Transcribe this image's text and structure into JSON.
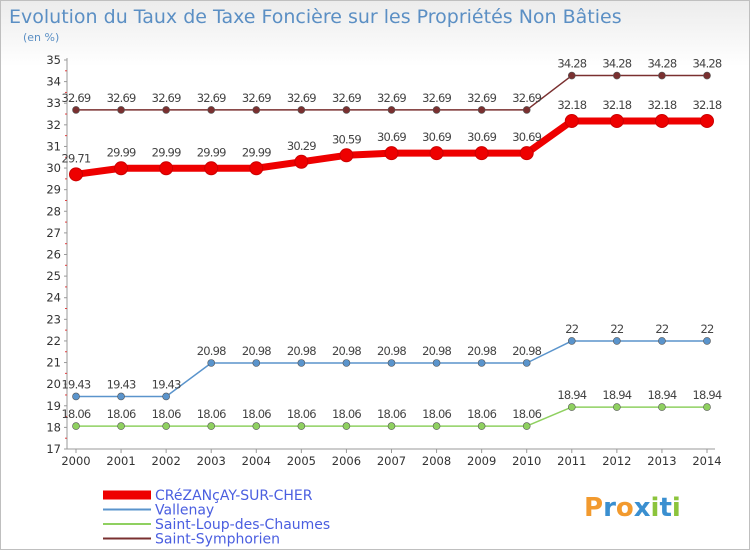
{
  "chart_data": {
    "type": "line",
    "title": "Evolution du Taux de Taxe Foncière sur les Propriétés Non Bâties",
    "ylabel": "(en %)",
    "categories": [
      "2000",
      "2001",
      "2002",
      "2003",
      "2004",
      "2005",
      "2006",
      "2007",
      "2008",
      "2009",
      "2010",
      "2011",
      "2012",
      "2013",
      "2014"
    ],
    "ylim": [
      17,
      35
    ],
    "yticks": [
      "17",
      "18",
      "19",
      "20",
      "21",
      "22",
      "23",
      "24",
      "25",
      "26",
      "27",
      "28",
      "29",
      "30",
      "31",
      "32",
      "33",
      "34",
      "35"
    ],
    "series": [
      {
        "name": "Saint-Symphorien",
        "color": "#7a3030",
        "values": [
          32.69,
          32.69,
          32.69,
          32.69,
          32.69,
          32.69,
          32.69,
          32.69,
          32.69,
          32.69,
          32.69,
          34.28,
          34.28,
          34.28,
          34.28
        ],
        "labels": [
          "32.69",
          "32.69",
          "32.69",
          "32.69",
          "32.69",
          "32.69",
          "32.69",
          "32.69",
          "32.69",
          "32.69",
          "32.69",
          "34.28",
          "34.28",
          "34.28",
          "34.28"
        ]
      },
      {
        "name": "CRéZANçAY-SUR-CHER",
        "color": "#ee0000",
        "values": [
          29.71,
          29.99,
          29.99,
          29.99,
          29.99,
          30.29,
          30.59,
          30.69,
          30.69,
          30.69,
          30.69,
          32.18,
          32.18,
          32.18,
          32.18
        ],
        "labels": [
          "29.71",
          "29.99",
          "29.99",
          "29.99",
          "29.99",
          "30.29",
          "30.59",
          "30.69",
          "30.69",
          "30.69",
          "30.69",
          "32.18",
          "32.18",
          "32.18",
          "32.18"
        ]
      },
      {
        "name": "Vallenay",
        "color": "#5a94cc",
        "values": [
          19.43,
          19.43,
          19.43,
          20.98,
          20.98,
          20.98,
          20.98,
          20.98,
          20.98,
          20.98,
          20.98,
          22,
          22,
          22,
          22
        ],
        "labels": [
          "19.43",
          "19.43",
          "19.43",
          "20.98",
          "20.98",
          "20.98",
          "20.98",
          "20.98",
          "20.98",
          "20.98",
          "20.98",
          "22",
          "22",
          "22",
          "22"
        ]
      },
      {
        "name": "Saint-Loup-des-Chaumes",
        "color": "#8fd060",
        "values": [
          18.06,
          18.06,
          18.06,
          18.06,
          18.06,
          18.06,
          18.06,
          18.06,
          18.06,
          18.06,
          18.06,
          18.94,
          18.94,
          18.94,
          18.94
        ],
        "labels": [
          "18.06",
          "18.06",
          "18.06",
          "18.06",
          "18.06",
          "18.06",
          "18.06",
          "18.06",
          "18.06",
          "18.06",
          "18.06",
          "18.94",
          "18.94",
          "18.94",
          "18.94"
        ]
      }
    ],
    "legend": [
      {
        "name": "CRéZANçAY-SUR-CHER",
        "color": "#ee0000"
      },
      {
        "name": "Vallenay",
        "color": "#5a94cc"
      },
      {
        "name": "Saint-Loup-des-Chaumes",
        "color": "#8fd060"
      },
      {
        "name": "Saint-Symphorien",
        "color": "#7a3030"
      }
    ],
    "legend_position": "bottom-left",
    "logo": "Proxiti"
  }
}
